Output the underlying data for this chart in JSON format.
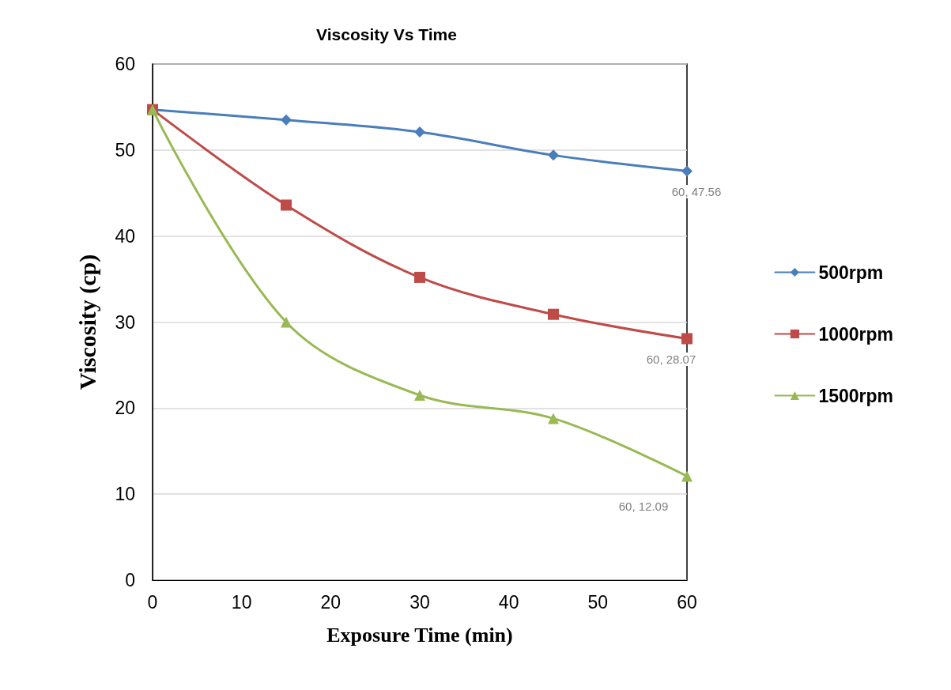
{
  "chart_data": {
    "type": "line",
    "title": "Viscosity Vs Time",
    "xlabel": "Exposure Time (min)",
    "ylabel": "Viscosity (cp)",
    "x": [
      0,
      15,
      30,
      45,
      60
    ],
    "series": [
      {
        "name": "500rpm",
        "color": "#4a7ebb",
        "marker": "diamond",
        "values": [
          54.7,
          53.5,
          52.1,
          49.4,
          47.56
        ],
        "value_labels": [
          null,
          null,
          null,
          null,
          "60, 47.56"
        ]
      },
      {
        "name": "1000rpm",
        "color": "#be4b48",
        "marker": "square",
        "values": [
          54.7,
          43.6,
          35.2,
          30.9,
          28.07
        ],
        "value_labels": [
          null,
          null,
          null,
          null,
          "60, 28.07"
        ]
      },
      {
        "name": "1500rpm",
        "color": "#98b954",
        "marker": "triangle",
        "values": [
          54.7,
          30.0,
          21.5,
          18.8,
          12.09
        ],
        "value_labels": [
          null,
          null,
          null,
          null,
          "60, 12.09"
        ]
      }
    ],
    "xlim": [
      0,
      60
    ],
    "xticks": [
      0,
      10,
      20,
      30,
      40,
      50,
      60
    ],
    "ylim": [
      0,
      60
    ],
    "yticks": [
      0,
      10,
      20,
      30,
      40,
      50,
      60
    ],
    "grid": "y",
    "legend": "right",
    "line_style": "solid"
  }
}
